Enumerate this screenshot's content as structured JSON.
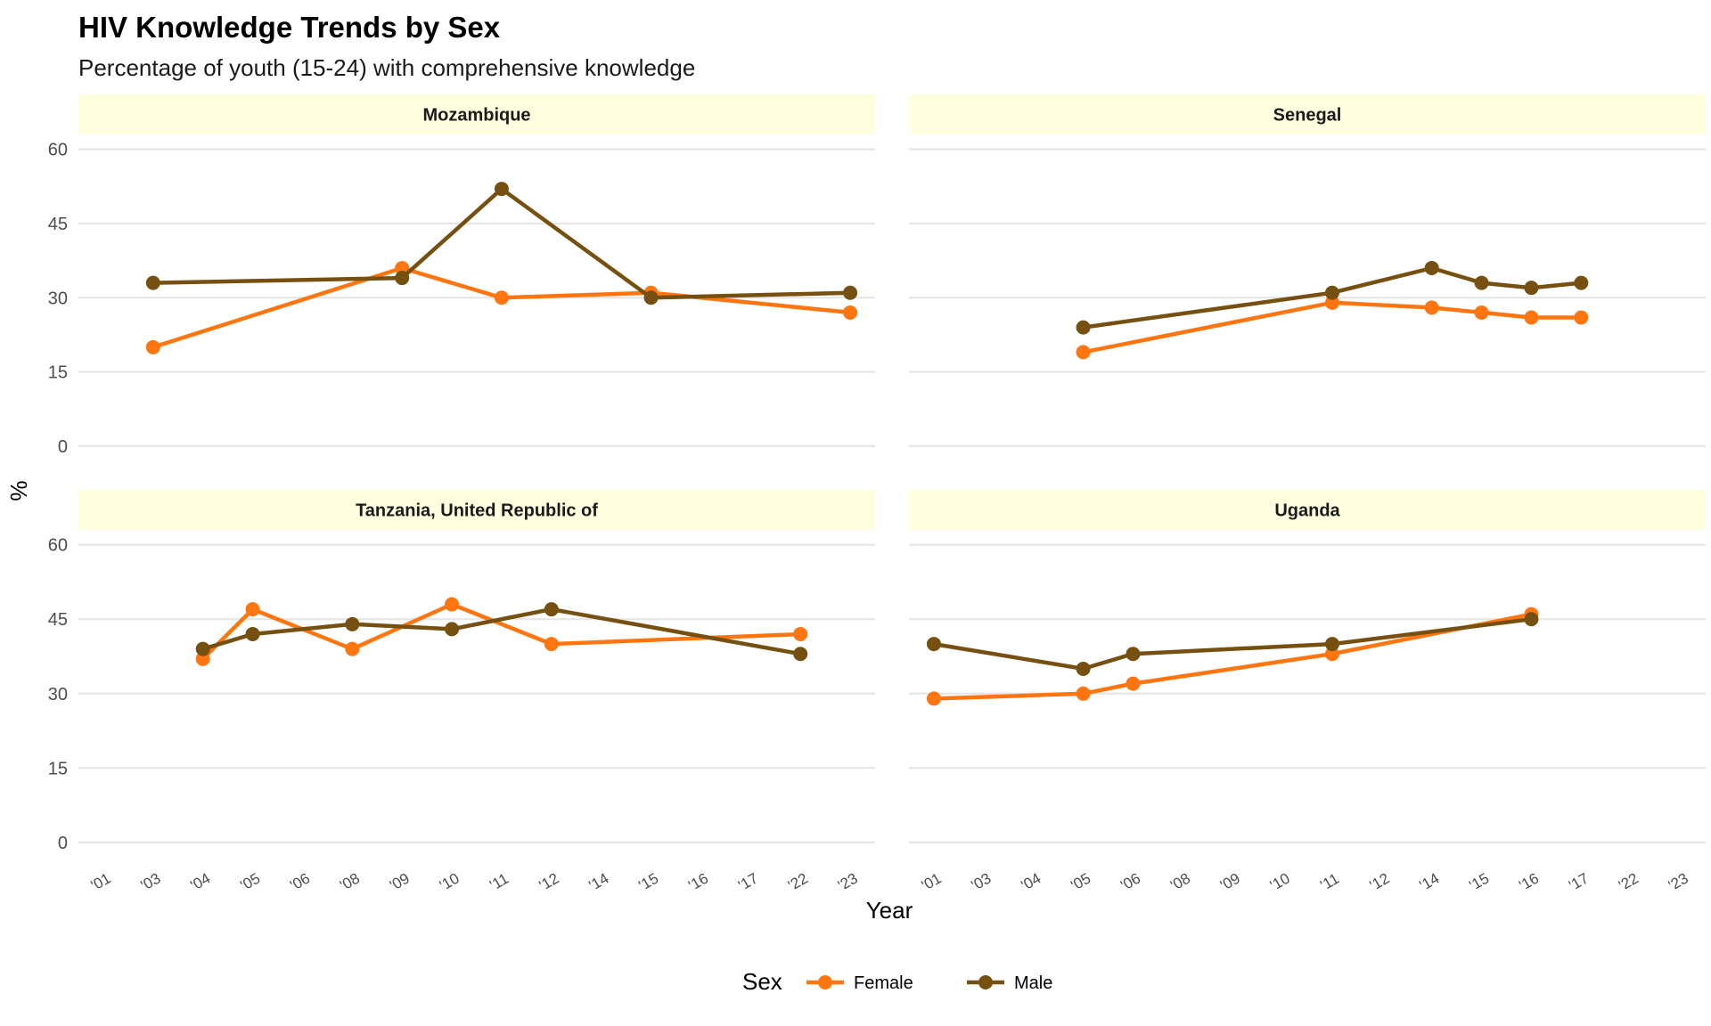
{
  "chart_data": {
    "type": "line",
    "title": "HIV Knowledge Trends by Sex",
    "subtitle": "Percentage of youth (15-24) with comprehensive knowledge",
    "xlabel": "Year",
    "ylabel": "%",
    "x_categories": [
      "'01",
      "'03",
      "'04",
      "'05",
      "'06",
      "'08",
      "'09",
      "'10",
      "'11",
      "'12",
      "'14",
      "'15",
      "'16",
      "'17",
      "'22",
      "'23"
    ],
    "y_ticks": [
      0,
      15,
      30,
      45,
      60
    ],
    "ylim": [
      -2,
      63
    ],
    "grid": true,
    "facet_strip_color": "#FFFFE0",
    "legend": {
      "title": "Sex",
      "position": "bottom",
      "entries": [
        {
          "name": "Female",
          "color": "#FF7611"
        },
        {
          "name": "Male",
          "color": "#765010"
        }
      ]
    },
    "panels": [
      {
        "name": "Mozambique",
        "series": [
          {
            "name": "Female",
            "x": [
              "'03",
              "'09",
              "'11",
              "'15",
              "'23"
            ],
            "values": [
              20,
              36,
              30,
              31,
              27
            ]
          },
          {
            "name": "Male",
            "x": [
              "'03",
              "'09",
              "'11",
              "'15",
              "'23"
            ],
            "values": [
              33,
              34,
              52,
              30,
              31
            ]
          }
        ]
      },
      {
        "name": "Senegal",
        "series": [
          {
            "name": "Female",
            "x": [
              "'05",
              "'11",
              "'14",
              "'15",
              "'16",
              "'17"
            ],
            "values": [
              19,
              29,
              28,
              27,
              26,
              26
            ]
          },
          {
            "name": "Male",
            "x": [
              "'05",
              "'11",
              "'14",
              "'15",
              "'16",
              "'17"
            ],
            "values": [
              24,
              31,
              36,
              33,
              32,
              33
            ]
          }
        ]
      },
      {
        "name": "Tanzania, United Republic of",
        "series": [
          {
            "name": "Female",
            "x": [
              "'04",
              "'05",
              "'08",
              "'10",
              "'12",
              "'22"
            ],
            "values": [
              37,
              47,
              39,
              48,
              40,
              42
            ]
          },
          {
            "name": "Male",
            "x": [
              "'04",
              "'05",
              "'08",
              "'10",
              "'12",
              "'22"
            ],
            "values": [
              39,
              42,
              44,
              43,
              47,
              38
            ]
          }
        ]
      },
      {
        "name": "Uganda",
        "series": [
          {
            "name": "Female",
            "x": [
              "'01",
              "'05",
              "'06",
              "'11",
              "'16"
            ],
            "values": [
              29,
              30,
              32,
              38,
              46
            ]
          },
          {
            "name": "Male",
            "x": [
              "'01",
              "'05",
              "'06",
              "'11",
              "'16"
            ],
            "values": [
              40,
              35,
              38,
              40,
              45
            ]
          }
        ]
      }
    ]
  }
}
